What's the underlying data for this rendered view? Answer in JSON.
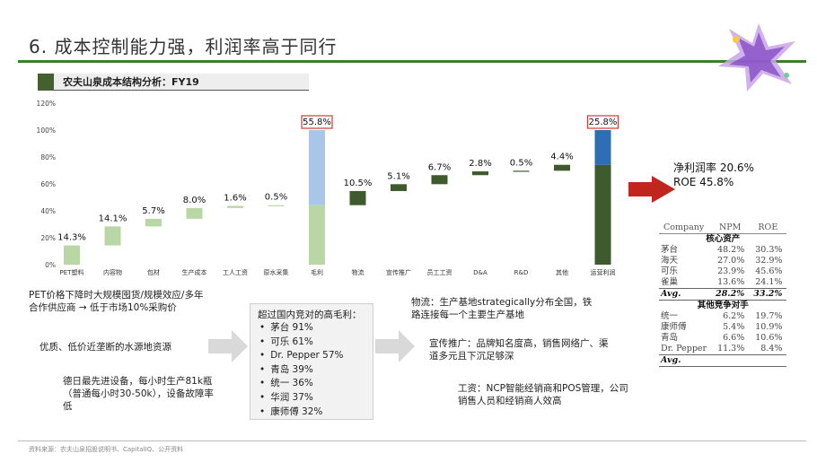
{
  "slide": {
    "title": "6. 成本控制能力强，利润率高于同行",
    "chart_title": "农夫山泉成本结构分析：FY19",
    "footer": "资料来源：农夫山泉招股说明书、CapitalIQ、公开资料"
  },
  "colors": {
    "brand_green": "#3e7d2c",
    "bar_light_green": "#b9d7a5",
    "bar_dark_green": "#3f5a2d",
    "bar_light_blue": "#a9c6e8",
    "bar_blue": "#2f6db4",
    "highlight_box": "#d03a2f",
    "arrow_red": "#c0251e"
  },
  "chart_data": {
    "type": "bar",
    "subtype": "waterfall",
    "yticks": [
      "0%",
      "20%",
      "40%",
      "60%",
      "80%",
      "100%",
      "120%"
    ],
    "ylim": [
      0,
      120
    ],
    "grid": false,
    "categories": [
      "PET塑料",
      "内容物",
      "包材",
      "生产成本",
      "工人工资",
      "原水采集",
      "毛利",
      "物流",
      "宣传推广",
      "员工工资",
      "D&A",
      "R&D",
      "其他",
      "运营利润"
    ],
    "labels": [
      "14.3%",
      "14.1%",
      "5.7%",
      "8.0%",
      "1.6%",
      "0.5%",
      "55.8%",
      "10.5%",
      "5.1%",
      "6.7%",
      "2.8%",
      "0.5%",
      "4.4%",
      "25.8%"
    ],
    "bars": [
      {
        "category": "PET塑料",
        "bottom": 0,
        "top": 14.3,
        "kind": "cost"
      },
      {
        "category": "内容物",
        "bottom": 14.3,
        "top": 28.4,
        "kind": "cost"
      },
      {
        "category": "包材",
        "bottom": 28.4,
        "top": 34.1,
        "kind": "cost"
      },
      {
        "category": "生产成本",
        "bottom": 34.1,
        "top": 42.1,
        "kind": "cost"
      },
      {
        "category": "工人工资",
        "bottom": 42.1,
        "top": 43.7,
        "kind": "cost"
      },
      {
        "category": "原水采集",
        "bottom": 43.7,
        "top": 44.2,
        "kind": "cost"
      },
      {
        "category": "毛利",
        "bottom": 0,
        "top": 100,
        "split": 44.2,
        "kind": "gross"
      },
      {
        "category": "物流",
        "bottom": 44.2,
        "top": 54.7,
        "kind": "opex"
      },
      {
        "category": "宣传推广",
        "bottom": 54.7,
        "top": 59.8,
        "kind": "opex"
      },
      {
        "category": "员工工资",
        "bottom": 59.8,
        "top": 66.5,
        "kind": "opex"
      },
      {
        "category": "D&A",
        "bottom": 66.5,
        "top": 69.3,
        "kind": "opex"
      },
      {
        "category": "R&D",
        "bottom": 69.3,
        "top": 69.8,
        "kind": "opex"
      },
      {
        "category": "其他",
        "bottom": 69.8,
        "top": 74.2,
        "kind": "opex"
      },
      {
        "category": "运营利润",
        "bottom": 0,
        "top": 100,
        "split": 74.2,
        "kind": "operating"
      }
    ],
    "highlighted": [
      "55.8%",
      "25.8%"
    ]
  },
  "kpis": {
    "net_margin": "净利润率 20.6%",
    "roe": "ROE 45.8%"
  },
  "comparison_table": {
    "headers": [
      "Company",
      "NPM",
      "ROE"
    ],
    "groups": [
      {
        "title": "核心资产",
        "rows": [
          [
            "茅台",
            "48.2%",
            "30.3%"
          ],
          [
            "海天",
            "27.0%",
            "32.9%"
          ],
          [
            "可乐",
            "23.9%",
            "45.6%"
          ],
          [
            "雀巢",
            "13.6%",
            "24.1%"
          ]
        ],
        "avg": [
          "Avg.",
          "28.2%",
          "33.2%"
        ]
      },
      {
        "title": "其他竞争对手",
        "rows": [
          [
            "统一",
            "6.2%",
            "19.7%"
          ],
          [
            "康师傅",
            "5.4%",
            "10.9%"
          ],
          [
            "青岛",
            "6.6%",
            "10.6%"
          ],
          [
            "Dr. Pepper",
            "11.3%",
            "8.4%"
          ]
        ],
        "avg": [
          "Avg.",
          "",
          ""
        ]
      }
    ]
  },
  "notes": {
    "pet": "PET价格下降时大规模囤货/规模效应/多年合作供应商 → 低于市场10%采购价",
    "water": "优质、低价近垄断的水源地资源",
    "equipment": "德日最先进设备，每小时生产81k瓶（普通每小时30-50k），设备故障率低",
    "logistics": "物流：生产基地strategically分布全国，铁路连接每一个主要生产基地",
    "promotion": "宣传推广：品牌知名度高，销售网络广、渠道多元且下沉足够深",
    "salary": "工资：NCP智能经销商和POS管理，公司销售人员和经销商人效高"
  },
  "competitors": {
    "title": "超过国内竞对的高毛利：",
    "items": [
      "茅台 91%",
      "可乐 61%",
      "Dr. Pepper 57%",
      "青岛 39%",
      "统一 36%",
      "华润 37%",
      "康师傅 32%"
    ]
  }
}
